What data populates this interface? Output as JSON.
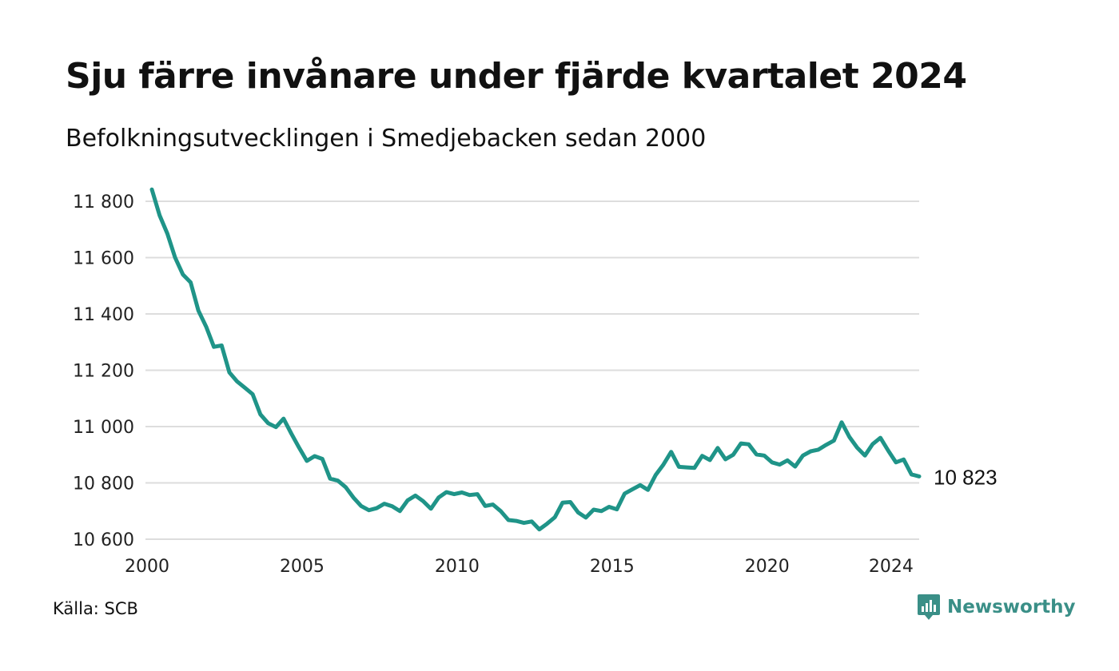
{
  "header": {
    "title": "Sju färre invånare under fjärde kvartalet 2024",
    "subtitle": "Befolkningsutvecklingen i Smedjebacken sedan 2000"
  },
  "footer": {
    "source": "Källa: SCB",
    "brand": "Newsworthy",
    "brand_icon": "newsworthy-logo-icon",
    "brand_color": "#3a8f87"
  },
  "chart_data": {
    "type": "line",
    "title": "Sju färre invånare under fjärde kvartalet 2024",
    "subtitle": "Befolkningsutvecklingen i Smedjebacken sedan 2000",
    "xlabel": "",
    "ylabel": "",
    "x_ticks": [
      {
        "label": "2000",
        "value": 2000
      },
      {
        "label": "2005",
        "value": 2005
      },
      {
        "label": "2010",
        "value": 2010
      },
      {
        "label": "2015",
        "value": 2015
      },
      {
        "label": "2020",
        "value": 2020
      },
      {
        "label": "2024",
        "value": 2024
      }
    ],
    "y_ticks": [
      {
        "label": "10 600",
        "value": 10600
      },
      {
        "label": "10 800",
        "value": 10800
      },
      {
        "label": "11 000",
        "value": 11000
      },
      {
        "label": "11 200",
        "value": 11200
      },
      {
        "label": "11 400",
        "value": 11400
      },
      {
        "label": "11 600",
        "value": 11600
      },
      {
        "label": "11 800",
        "value": 11800
      }
    ],
    "xlim": [
      2000,
      2024.75
    ],
    "ylim": [
      10600,
      11840
    ],
    "grid": "horizontal",
    "line_color": "#1f9488",
    "grid_color": "#dddddd",
    "end_label": "10 823",
    "series": [
      {
        "x": [
          2000,
          2000.25,
          2000.5,
          2000.75,
          2001,
          2001.25,
          2001.5,
          2001.75,
          2002,
          2002.25,
          2002.5,
          2002.75,
          2003,
          2003.25,
          2003.5,
          2003.75,
          2004,
          2004.25,
          2004.5,
          2004.75,
          2005,
          2005.25,
          2005.5,
          2005.75,
          2006,
          2006.25,
          2006.5,
          2006.75,
          2007,
          2007.25,
          2007.5,
          2007.75,
          2008,
          2008.25,
          2008.5,
          2008.75,
          2009,
          2009.25,
          2009.5,
          2009.75,
          2010,
          2010.25,
          2010.5,
          2010.75,
          2011,
          2011.25,
          2011.5,
          2011.75,
          2012,
          2012.25,
          2012.5,
          2012.75,
          2013,
          2013.25,
          2013.5,
          2013.75,
          2014,
          2014.25,
          2014.5,
          2014.75,
          2015,
          2015.25,
          2015.5,
          2015.75,
          2016,
          2016.25,
          2016.5,
          2016.75,
          2017,
          2017.25,
          2017.5,
          2017.75,
          2018,
          2018.25,
          2018.5,
          2018.75,
          2019,
          2019.25,
          2019.5,
          2019.75,
          2020,
          2020.25,
          2020.5,
          2020.75,
          2021,
          2021.25,
          2021.5,
          2021.75,
          2022,
          2022.25,
          2022.5,
          2022.75,
          2023,
          2023.25,
          2023.5,
          2023.75,
          2024,
          2024.25,
          2024.5,
          2024.75
        ],
        "values": [
          11842,
          11750,
          11685,
          11600,
          11540,
          11512,
          11412,
          11355,
          11283,
          11288,
          11192,
          11160,
          11138,
          11115,
          11043,
          11012,
          10998,
          11028,
          10975,
          10925,
          10878,
          10895,
          10885,
          10815,
          10808,
          10785,
          10748,
          10718,
          10703,
          10710,
          10726,
          10717,
          10700,
          10738,
          10755,
          10735,
          10708,
          10748,
          10767,
          10760,
          10766,
          10757,
          10760,
          10718,
          10723,
          10700,
          10668,
          10665,
          10658,
          10663,
          10635,
          10655,
          10678,
          10730,
          10732,
          10695,
          10677,
          10705,
          10700,
          10715,
          10706,
          10762,
          10777,
          10792,
          10775,
          10828,
          10865,
          10910,
          10857,
          10855,
          10853,
          10896,
          10881,
          10924,
          10884,
          10900,
          10940,
          10937,
          10901,
          10897,
          10873,
          10865,
          10880,
          10858,
          10897,
          10912,
          10918,
          10935,
          10950,
          11015,
          10963,
          10925,
          10897,
          10938,
          10960,
          10915,
          10873,
          10883,
          10830,
          10823
        ]
      }
    ]
  }
}
